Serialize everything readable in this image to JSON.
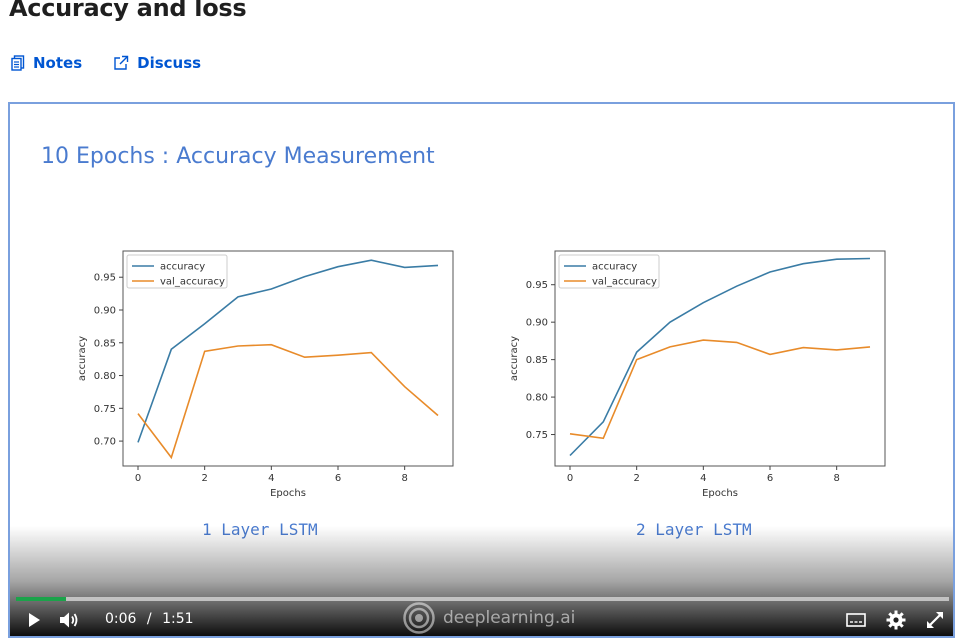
{
  "page": {
    "title": "Accuracy and loss"
  },
  "toolbar": {
    "notes_label": "Notes",
    "discuss_label": "Discuss"
  },
  "slide": {
    "title": "10 Epochs : Accuracy Measurement",
    "caption_left": "1 Layer LSTM",
    "caption_right": "2 Layer LSTM"
  },
  "chart_data": [
    {
      "type": "line",
      "xlabel": "Epochs",
      "ylabel": "accuracy",
      "x": [
        0,
        1,
        2,
        3,
        4,
        5,
        6,
        7,
        8,
        9
      ],
      "xlim": [
        -0.45,
        9.45
      ],
      "ylim": [
        0.662,
        0.99
      ],
      "xticks": [
        0,
        2,
        4,
        6,
        8
      ],
      "yticks": [
        0.7,
        0.75,
        0.8,
        0.85,
        0.9,
        0.95
      ],
      "legend": "top-left",
      "grid": false,
      "series": [
        {
          "name": "accuracy",
          "color": "#3a7ca5",
          "values": [
            0.698,
            0.84,
            0.879,
            0.92,
            0.932,
            0.951,
            0.966,
            0.976,
            0.965,
            0.968
          ]
        },
        {
          "name": "val_accuracy",
          "color": "#e88b2a",
          "values": [
            0.742,
            0.675,
            0.837,
            0.845,
            0.847,
            0.828,
            0.831,
            0.835,
            0.783,
            0.739
          ]
        }
      ]
    },
    {
      "type": "line",
      "xlabel": "Epochs",
      "ylabel": "accuracy",
      "x": [
        0,
        1,
        2,
        3,
        4,
        5,
        6,
        7,
        8,
        9
      ],
      "xlim": [
        -0.45,
        9.45
      ],
      "ylim": [
        0.708,
        0.995
      ],
      "xticks": [
        0,
        2,
        4,
        6,
        8
      ],
      "yticks": [
        0.75,
        0.8,
        0.85,
        0.9,
        0.95
      ],
      "legend": "top-left",
      "grid": false,
      "series": [
        {
          "name": "accuracy",
          "color": "#3a7ca5",
          "values": [
            0.722,
            0.767,
            0.86,
            0.9,
            0.926,
            0.948,
            0.967,
            0.978,
            0.984,
            0.985
          ]
        },
        {
          "name": "val_accuracy",
          "color": "#e88b2a",
          "values": [
            0.751,
            0.745,
            0.85,
            0.867,
            0.876,
            0.873,
            0.857,
            0.866,
            0.863,
            0.867
          ]
        }
      ]
    }
  ],
  "player": {
    "current_time": "0:06",
    "separator": "/",
    "duration": "1:51",
    "progress": 0.054,
    "brand": "deeplearning.ai",
    "colors": {
      "progress": "#1ba34a",
      "accent": "#0056d2"
    }
  }
}
